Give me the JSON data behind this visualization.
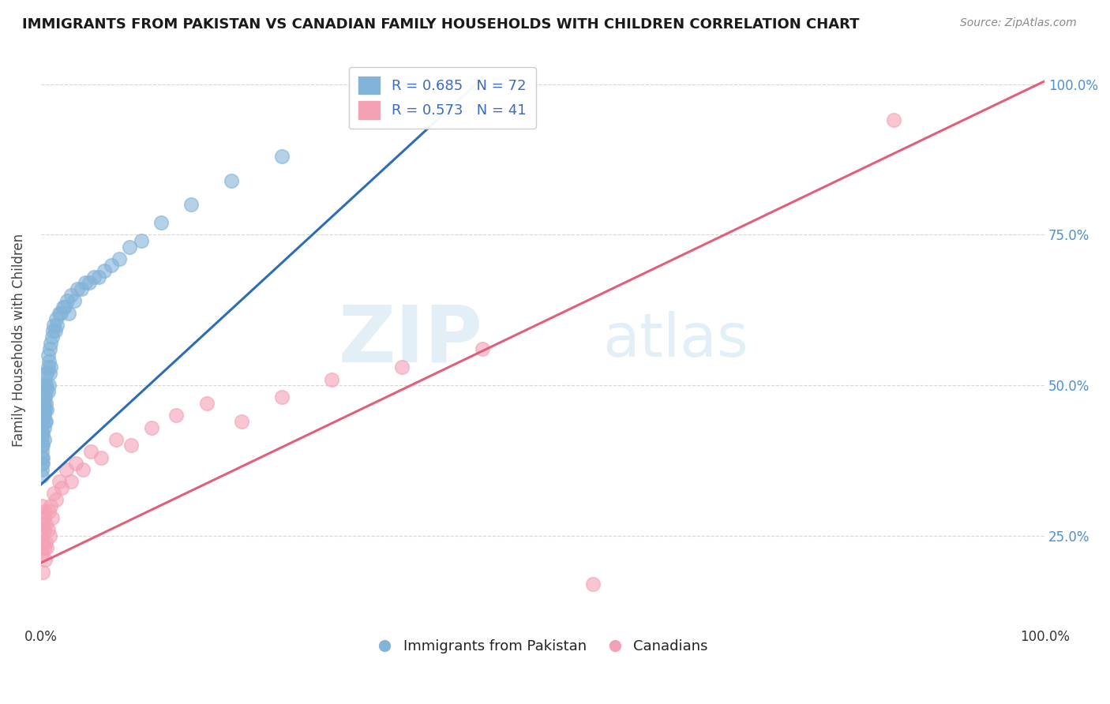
{
  "title": "IMMIGRANTS FROM PAKISTAN VS CANADIAN FAMILY HOUSEHOLDS WITH CHILDREN CORRELATION CHART",
  "source_text": "Source: ZipAtlas.com",
  "ylabel": "Family Households with Children",
  "watermark_zip": "ZIP",
  "watermark_atlas": "atlas",
  "xmin": 0.0,
  "xmax": 1.0,
  "ymin": 0.1,
  "ymax": 1.05,
  "blue_R": 0.685,
  "blue_N": 72,
  "pink_R": 0.573,
  "pink_N": 41,
  "blue_color": "#82b3d8",
  "pink_color": "#f4a0b5",
  "blue_line_color": "#2e6db4",
  "pink_line_color": "#e0607a",
  "legend_label_blue": "Immigrants from Pakistan",
  "legend_label_pink": "Canadians",
  "background_color": "#ffffff",
  "grid_color": "#cccccc",
  "title_color": "#1a1a1a",
  "axis_label_color": "#444444",
  "tick_label_color_right": "#4a90d9",
  "tick_label_color_bottom": "#333333",
  "blue_trend_x0": 0.0,
  "blue_trend_y0": 0.335,
  "blue_trend_x1": 0.44,
  "blue_trend_y1": 1.01,
  "pink_trend_x0": 0.0,
  "pink_trend_y0": 0.205,
  "pink_trend_x1": 1.0,
  "pink_trend_y1": 1.005,
  "blue_scatter_x": [
    0.001,
    0.001,
    0.001,
    0.001,
    0.001,
    0.001,
    0.001,
    0.001,
    0.001,
    0.002,
    0.002,
    0.002,
    0.002,
    0.002,
    0.002,
    0.002,
    0.002,
    0.003,
    0.003,
    0.003,
    0.003,
    0.003,
    0.003,
    0.004,
    0.004,
    0.004,
    0.004,
    0.005,
    0.005,
    0.005,
    0.005,
    0.006,
    0.006,
    0.006,
    0.007,
    0.007,
    0.007,
    0.008,
    0.008,
    0.009,
    0.009,
    0.01,
    0.01,
    0.011,
    0.012,
    0.013,
    0.014,
    0.015,
    0.016,
    0.018,
    0.02,
    0.022,
    0.024,
    0.026,
    0.028,
    0.03,
    0.033,
    0.036,
    0.04,
    0.044,
    0.048,
    0.053,
    0.058,
    0.063,
    0.07,
    0.078,
    0.088,
    0.1,
    0.12,
    0.15,
    0.19,
    0.24
  ],
  "blue_scatter_y": [
    0.38,
    0.4,
    0.36,
    0.42,
    0.35,
    0.39,
    0.37,
    0.41,
    0.43,
    0.44,
    0.38,
    0.46,
    0.4,
    0.42,
    0.37,
    0.45,
    0.48,
    0.47,
    0.43,
    0.5,
    0.45,
    0.41,
    0.46,
    0.48,
    0.44,
    0.5,
    0.46,
    0.52,
    0.47,
    0.44,
    0.49,
    0.5,
    0.46,
    0.52,
    0.53,
    0.49,
    0.55,
    0.54,
    0.5,
    0.56,
    0.52,
    0.57,
    0.53,
    0.58,
    0.59,
    0.6,
    0.59,
    0.61,
    0.6,
    0.62,
    0.62,
    0.63,
    0.63,
    0.64,
    0.62,
    0.65,
    0.64,
    0.66,
    0.66,
    0.67,
    0.67,
    0.68,
    0.68,
    0.69,
    0.7,
    0.71,
    0.73,
    0.74,
    0.77,
    0.8,
    0.84,
    0.88
  ],
  "pink_scatter_x": [
    0.001,
    0.001,
    0.001,
    0.002,
    0.002,
    0.002,
    0.003,
    0.003,
    0.003,
    0.004,
    0.004,
    0.005,
    0.005,
    0.006,
    0.007,
    0.008,
    0.009,
    0.01,
    0.011,
    0.013,
    0.015,
    0.018,
    0.021,
    0.025,
    0.03,
    0.035,
    0.042,
    0.05,
    0.06,
    0.075,
    0.09,
    0.11,
    0.135,
    0.165,
    0.2,
    0.24,
    0.29,
    0.36,
    0.44,
    0.55,
    0.85
  ],
  "pink_scatter_y": [
    0.3,
    0.22,
    0.25,
    0.27,
    0.24,
    0.19,
    0.28,
    0.23,
    0.26,
    0.21,
    0.29,
    0.24,
    0.27,
    0.23,
    0.26,
    0.29,
    0.25,
    0.3,
    0.28,
    0.32,
    0.31,
    0.34,
    0.33,
    0.36,
    0.34,
    0.37,
    0.36,
    0.39,
    0.38,
    0.41,
    0.4,
    0.43,
    0.45,
    0.47,
    0.44,
    0.48,
    0.51,
    0.53,
    0.56,
    0.17,
    0.94
  ]
}
